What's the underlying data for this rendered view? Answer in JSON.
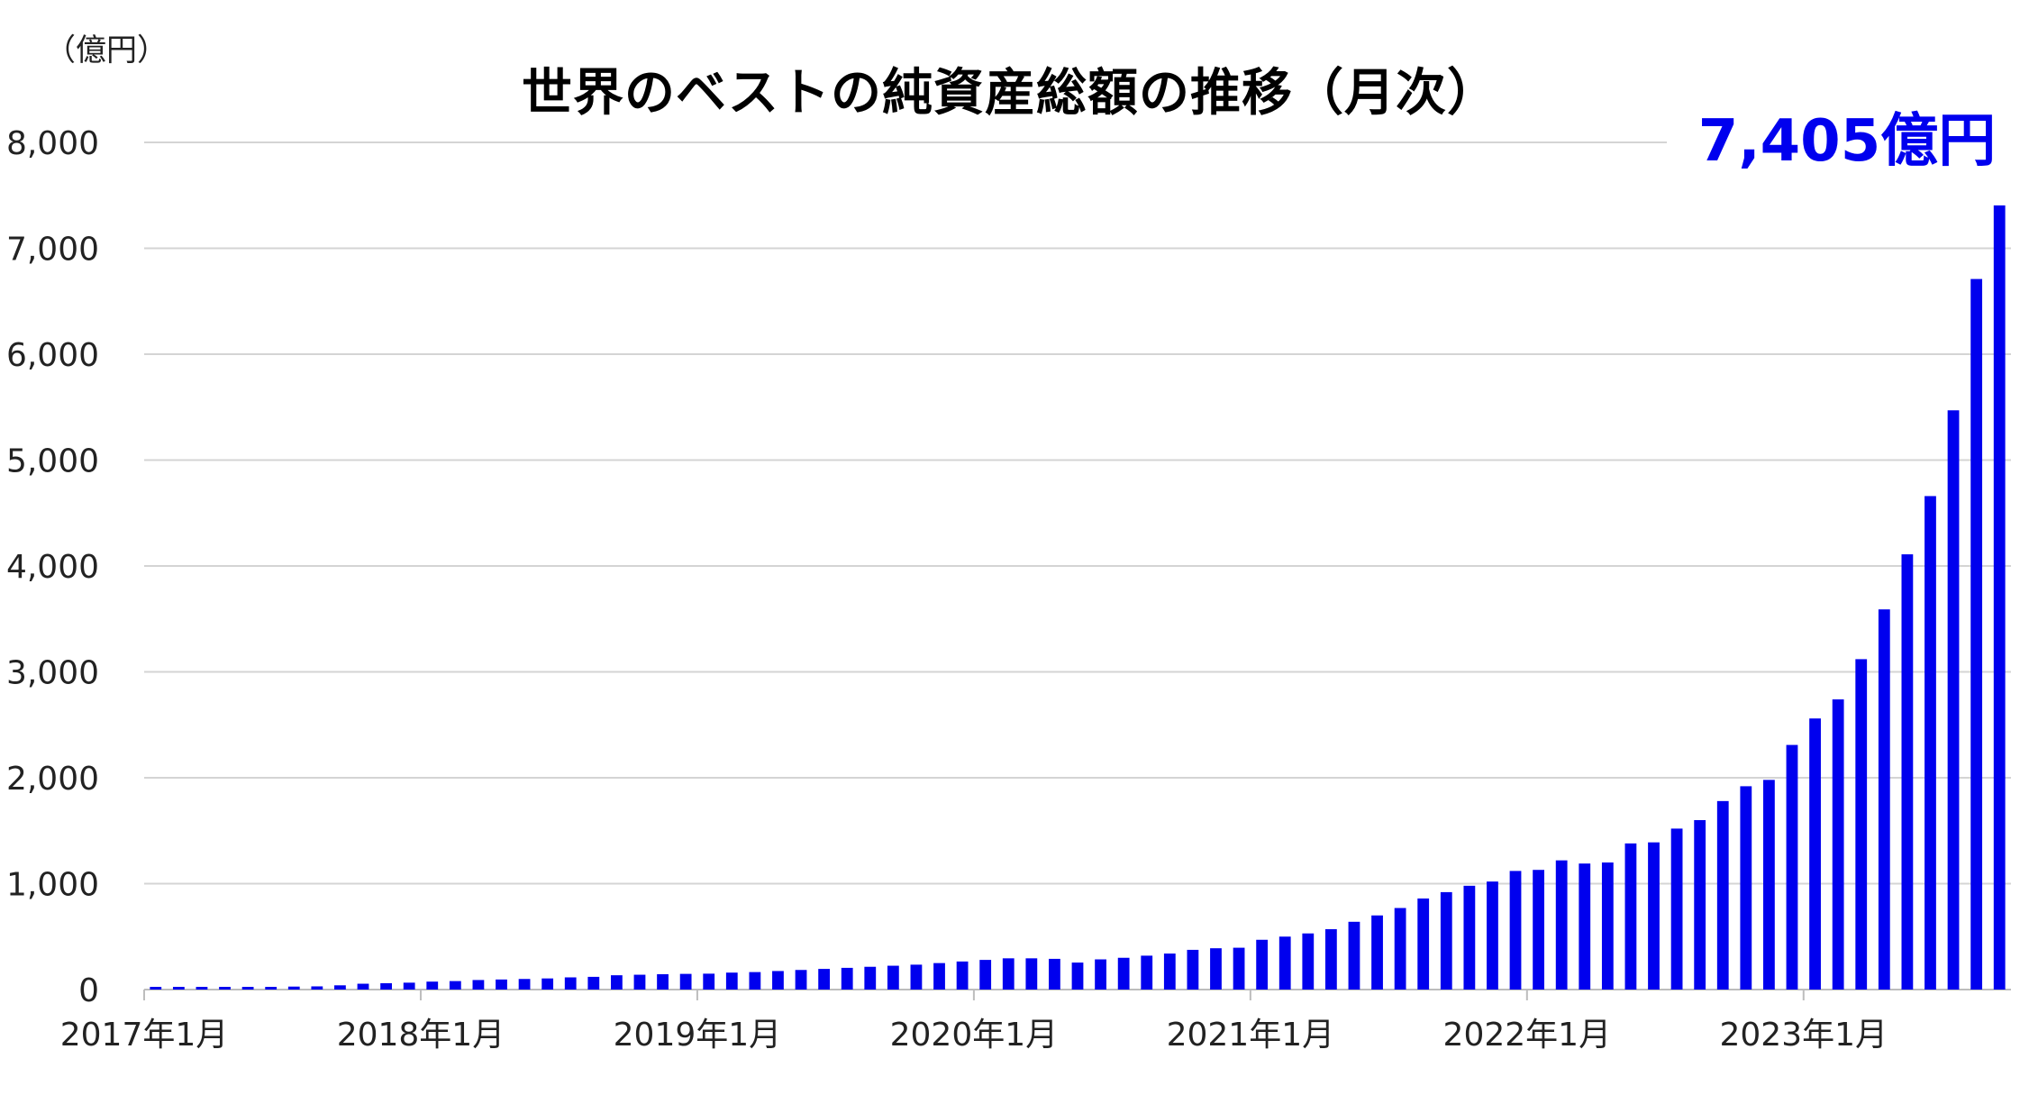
{
  "chart_data": {
    "type": "bar",
    "title": "世界のベストの純資産総額の推移（月次）",
    "unit_label": "（億円）",
    "callout": "7,405億円",
    "color": "#0000ee",
    "ylim": [
      0,
      8000
    ],
    "y_ticks": [
      0,
      1000,
      2000,
      3000,
      4000,
      5000,
      6000,
      7000,
      8000
    ],
    "y_tick_labels": [
      "0",
      "1,000",
      "2,000",
      "3,000",
      "4,000",
      "5,000",
      "6,000",
      "7,000",
      "8,000"
    ],
    "x_tick_labels": [
      "2017年1月",
      "2018年1月",
      "2019年1月",
      "2020年1月",
      "2021年1月",
      "2022年1月",
      "2023年1月"
    ],
    "x_tick_indices": [
      0,
      12,
      24,
      36,
      48,
      60,
      72
    ],
    "grid": true,
    "values": [
      25,
      25,
      25,
      25,
      25,
      25,
      28,
      30,
      40,
      55,
      60,
      65,
      75,
      80,
      90,
      95,
      100,
      105,
      115,
      120,
      135,
      140,
      145,
      148,
      150,
      160,
      165,
      175,
      185,
      195,
      205,
      215,
      225,
      235,
      250,
      265,
      280,
      295,
      295,
      290,
      255,
      285,
      300,
      320,
      340,
      375,
      390,
      395,
      470,
      500,
      530,
      570,
      640,
      700,
      770,
      860,
      920,
      980,
      1020,
      1120,
      1130,
      1220,
      1190,
      1200,
      1380,
      1390,
      1520,
      1600,
      1780,
      1920,
      1980,
      2310,
      2560,
      2740,
      3120,
      3590,
      4110,
      4660,
      5470,
      6710,
      7405
    ]
  }
}
